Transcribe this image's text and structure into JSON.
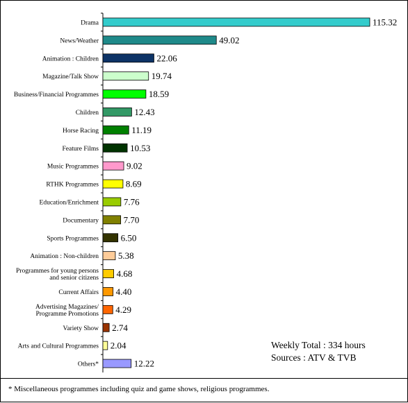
{
  "chart_data": {
    "type": "bar",
    "orientation": "horizontal",
    "categories": [
      [
        "Drama"
      ],
      [
        "News/Weather"
      ],
      [
        "Animation : Children"
      ],
      [
        "Magazine/Talk Show"
      ],
      [
        "Business/Financial Programmes"
      ],
      [
        "Children"
      ],
      [
        "Horse Racing"
      ],
      [
        "Feature Films"
      ],
      [
        "Music Programmes"
      ],
      [
        "RTHK Programmes"
      ],
      [
        "Education/Enrichment"
      ],
      [
        "Documentary"
      ],
      [
        "Sports Programmes"
      ],
      [
        "Animation : Non-children"
      ],
      [
        "Programmes for young persons",
        "and senior citizens"
      ],
      [
        "Current Affairs"
      ],
      [
        "Advertising Magazines/",
        "Programme Promotions"
      ],
      [
        "Variety Show"
      ],
      [
        "Arts and Cultural Programmes"
      ],
      [
        "Others*"
      ]
    ],
    "values": [
      115.32,
      49.02,
      22.06,
      19.74,
      18.59,
      12.43,
      11.19,
      10.53,
      9.02,
      8.69,
      7.76,
      7.7,
      6.5,
      5.38,
      4.68,
      4.4,
      4.29,
      2.74,
      2.04,
      12.22
    ],
    "value_labels": [
      "115.32",
      "49.02",
      "22.06",
      "19.74",
      "18.59",
      "12.43",
      "11.19",
      "10.53",
      "9.02",
      "8.69",
      "7.76",
      "7.70",
      "6.50",
      "5.38",
      "4.68",
      "4.40",
      "4.29",
      "2.74",
      "2.04",
      "12.22"
    ],
    "colors": [
      "#33CCCC",
      "#1F8A8A",
      "#0D3366",
      "#CCFFCC",
      "#00FF00",
      "#339966",
      "#008000",
      "#003300",
      "#FF99CC",
      "#FFFF00",
      "#99CC00",
      "#808000",
      "#333300",
      "#FFCC99",
      "#FFCC00",
      "#FF9900",
      "#FF6600",
      "#993300",
      "#FFFF99",
      "#9999FF"
    ],
    "xlim": [
      0,
      115.32
    ],
    "grid": false,
    "legend": "none"
  },
  "info": {
    "line1": "Weekly Total : 334 hours",
    "line2": "Sources : ATV & TVB"
  },
  "footnote": "* Miscellaneous programmes including quiz and game shows, religious programmes."
}
